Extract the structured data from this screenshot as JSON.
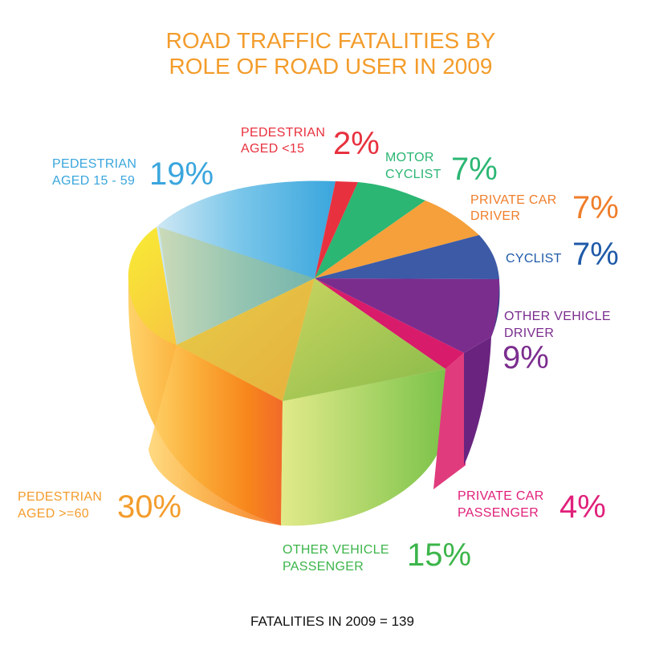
{
  "chart_data": {
    "type": "pie",
    "title_lines": [
      "ROAD TRAFFIC FATALITIES BY",
      "ROLE OF ROAD USER IN 2009"
    ],
    "footer": "FATALITIES IN 2009 = 139",
    "slices": [
      {
        "label_lines": [
          "PEDESTRIAN",
          "AGED <15"
        ],
        "value": 2,
        "value_label": "2%",
        "color": "#e8313f"
      },
      {
        "label_lines": [
          "MOTOR",
          "CYCLIST"
        ],
        "value": 7,
        "value_label": "7%",
        "color": "#2bb673"
      },
      {
        "label_lines": [
          "PRIVATE CAR",
          "DRIVER"
        ],
        "value": 7,
        "value_label": "7%",
        "color": "#f5a03a",
        "text_color": "#ef7e2b"
      },
      {
        "label_lines": [
          "CYCLIST"
        ],
        "value": 7,
        "value_label": "7%",
        "color": "#3c5aa6",
        "text_color": "#1f5aa8"
      },
      {
        "label_lines": [
          "OTHER VEHICLE",
          "DRIVER"
        ],
        "value": 9,
        "value_label": "9%",
        "color": "#7b2d8e",
        "text_color": "#7b2d8e"
      },
      {
        "label_lines": [
          "PRIVATE CAR",
          "PASSENGER"
        ],
        "value": 4,
        "value_label": "4%",
        "color": "#d81b6a",
        "text_color": "#e0207a"
      },
      {
        "label_lines": [
          "OTHER VEHICLE",
          "PASSENGER"
        ],
        "value": 15,
        "value_label": "15%",
        "color": "#8cc63f",
        "text_color": "#3cb54a"
      },
      {
        "label_lines": [
          "PEDESTRIAN",
          "AGED >=60"
        ],
        "value": 30,
        "value_label": "30%",
        "color": "#f7b23b",
        "text_color": "#f39c2b"
      },
      {
        "label_lines": [
          "PEDESTRIAN",
          "AGED 15 - 59"
        ],
        "value": 19,
        "value_label": "19%",
        "color": "#4fb3e3",
        "text_color": "#3aa6dd"
      }
    ]
  },
  "colors": {
    "title": "#f39c2b",
    "footer": "#111111"
  }
}
